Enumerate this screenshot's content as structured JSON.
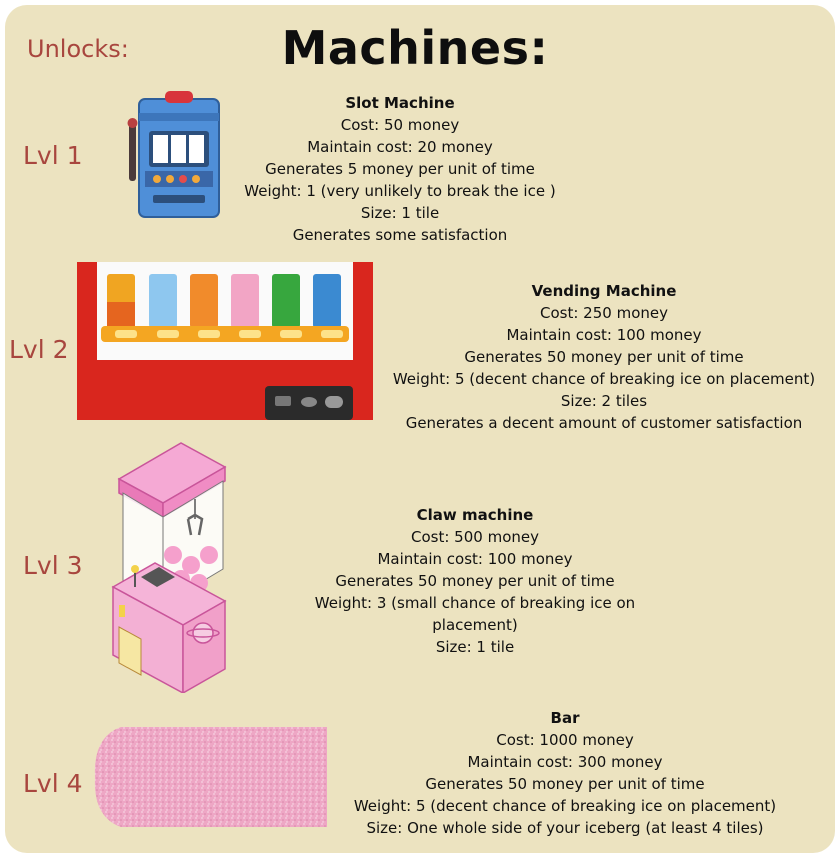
{
  "header": {
    "unlocks_label": "Unlocks:",
    "title": "Machines:"
  },
  "machines": [
    {
      "level": "Lvl 1",
      "name": "Slot Machine",
      "icon": "slot-machine-icon",
      "lines": [
        "Cost: 50 money",
        "Maintain cost: 20 money",
        "Generates 5 money per unit of time",
        "Weight: 1 (very unlikely to break the ice )",
        "Size: 1 tile",
        "Generates some satisfaction"
      ]
    },
    {
      "level": "Lvl 2",
      "name": "Vending Machine",
      "icon": "vending-machine-icon",
      "lines": [
        "Cost: 250 money",
        "Maintain cost: 100 money",
        "Generates 50 money per unit of time",
        "Weight: 5 (decent chance of breaking ice on placement)",
        "Size: 2 tiles",
        "Generates a decent amount of customer satisfaction"
      ]
    },
    {
      "level": "Lvl 3",
      "name": "Claw machine",
      "icon": "claw-machine-icon",
      "lines": [
        "Cost: 500 money",
        "Maintain cost: 100 money",
        "Generates 50 money per unit of time",
        "Weight: 3 (small chance of breaking ice on placement)",
        "Size: 1 tile"
      ]
    },
    {
      "level": "Lvl 4",
      "name": "Bar",
      "icon": "bar-counter-icon",
      "lines": [
        "Cost: 1000 money",
        "Maintain cost: 300 money",
        "Generates 50 money per unit of time",
        "Weight: 5 (decent chance of breaking ice on placement)",
        "Size: One whole side of your iceberg (at least 4 tiles)"
      ]
    }
  ],
  "colors": {
    "background": "#ece3c0",
    "level_text": "#a8463e",
    "title_text": "#0e0e0e"
  }
}
